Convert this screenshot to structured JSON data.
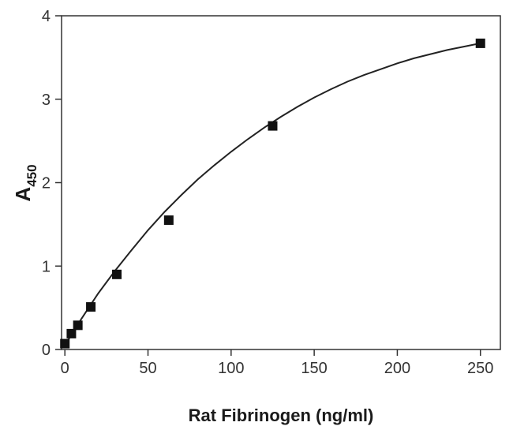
{
  "chart_data": {
    "type": "scatter",
    "title": "",
    "xlabel": "Rat Fibrinogen (ng/ml)",
    "ylabel_main": "A",
    "ylabel_sub": "450",
    "xlim": [
      -2,
      262
    ],
    "ylim": [
      0,
      4
    ],
    "x_ticks": [
      0,
      50,
      100,
      150,
      200,
      250
    ],
    "y_ticks": [
      0,
      1,
      2,
      3,
      4
    ],
    "grid": false,
    "series": [
      {
        "x": [
          0,
          3.9,
          7.8,
          15.6,
          31.25,
          62.5,
          125,
          250
        ],
        "y": [
          0.07,
          0.19,
          0.29,
          0.51,
          0.9,
          1.55,
          2.68,
          3.67
        ]
      }
    ],
    "fit_curve": {
      "x": [
        0,
        10,
        20,
        30,
        40,
        50,
        60,
        70,
        80,
        90,
        100,
        110,
        120,
        130,
        140,
        150,
        160,
        170,
        180,
        190,
        200,
        210,
        220,
        230,
        240,
        250
      ],
      "y": [
        0.05,
        0.37,
        0.67,
        0.94,
        1.19,
        1.43,
        1.65,
        1.85,
        2.04,
        2.21,
        2.37,
        2.52,
        2.66,
        2.79,
        2.91,
        3.02,
        3.12,
        3.21,
        3.29,
        3.36,
        3.43,
        3.49,
        3.54,
        3.59,
        3.63,
        3.67
      ]
    },
    "colors": {
      "marker": "#111111",
      "line": "#222222",
      "axis": "#333333"
    }
  }
}
